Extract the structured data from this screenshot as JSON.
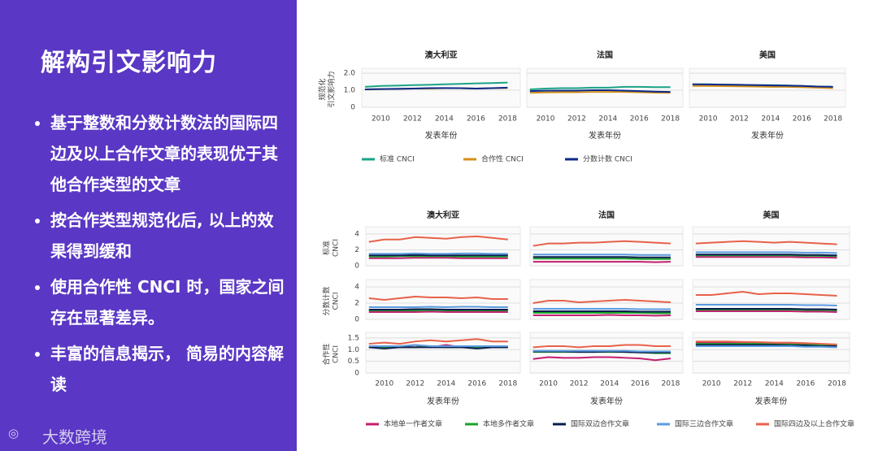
{
  "slide": {
    "title": "解构引文影响力",
    "bullets": [
      "基于整数和分数计数法的国际四边及以上合作文章的表现优于其他合作类型的文章",
      "按合作类型规范化后, 以上的效果得到缓和",
      "使用合作性 CNCI 时，国家之间存在显著差异。",
      "丰富的信息揭示， 简易的内容解读"
    ],
    "logo": "大数跨境"
  },
  "chart_data": [
    {
      "type": "line",
      "ylabel": [
        "规范化",
        "引文影响力"
      ],
      "xlabel": "发表年份",
      "x": [
        2009,
        2010,
        2011,
        2012,
        2013,
        2014,
        2015,
        2016,
        2017,
        2018
      ],
      "xlim": [
        2008.8,
        2018.8
      ],
      "xticks": [
        2010,
        2012,
        2014,
        2016,
        2018
      ],
      "ylim": [
        0,
        2.1
      ],
      "yticks": [
        0,
        {
          "value": 1,
          "label": "1.0"
        },
        {
          "value": 2,
          "label": "2.0"
        }
      ],
      "grid": true,
      "series": [
        {
          "name": "标准 CNCI",
          "color": "#1aa386"
        },
        {
          "name": "合作性 CNCI",
          "color": "#d4901a"
        },
        {
          "name": "分数计数 CNCI",
          "color": "#0d2a8a"
        }
      ],
      "panels": [
        {
          "title": "澳大利亚",
          "series": [
            [
              1.2,
              1.25,
              1.27,
              1.3,
              1.32,
              1.35,
              1.37,
              1.4,
              1.42,
              1.45
            ],
            [
              1.05,
              1.07,
              1.08,
              1.1,
              1.1,
              1.12,
              1.12,
              1.1,
              1.12,
              1.13
            ],
            [
              1.05,
              1.07,
              1.08,
              1.1,
              1.12,
              1.13,
              1.12,
              1.1,
              1.12,
              1.15
            ]
          ]
        },
        {
          "title": "法国",
          "series": [
            [
              1.05,
              1.1,
              1.12,
              1.12,
              1.15,
              1.15,
              1.2,
              1.2,
              1.18,
              1.18
            ],
            [
              0.85,
              0.87,
              0.88,
              0.88,
              0.9,
              0.9,
              0.9,
              0.88,
              0.86,
              0.85
            ],
            [
              0.95,
              0.97,
              0.98,
              0.98,
              1.0,
              1.0,
              0.98,
              0.95,
              0.92,
              0.9
            ]
          ]
        },
        {
          "title": "美国",
          "series": [
            [
              1.35,
              1.35,
              1.33,
              1.32,
              1.3,
              1.3,
              1.28,
              1.25,
              1.22,
              1.2
            ],
            [
              1.25,
              1.25,
              1.24,
              1.23,
              1.22,
              1.2,
              1.2,
              1.18,
              1.15,
              1.12
            ],
            [
              1.35,
              1.34,
              1.33,
              1.32,
              1.3,
              1.28,
              1.27,
              1.25,
              1.22,
              1.2
            ]
          ]
        }
      ]
    },
    {
      "type": "line",
      "xlabel": "发表年份",
      "x": [
        2009,
        2010,
        2011,
        2012,
        2013,
        2014,
        2015,
        2016,
        2017,
        2018
      ],
      "xlim": [
        2008.8,
        2018.8
      ],
      "xticks": [
        2010,
        2012,
        2014,
        2016,
        2018
      ],
      "grid": true,
      "rows": [
        {
          "label": [
            "标准",
            "CNCI"
          ],
          "ylim": [
            0,
            4.5
          ],
          "yticks": [
            0,
            2,
            4
          ]
        },
        {
          "label": [
            "分数计数",
            "CNCI"
          ],
          "ylim": [
            0,
            4.5
          ],
          "yticks": [
            0,
            2,
            4
          ]
        },
        {
          "label": [
            "合作性",
            "CNCI"
          ],
          "ylim": [
            0,
            1.6
          ],
          "yticks": [
            0,
            0.5,
            {
              "value": 1,
              "label": "1.0"
            },
            1.5
          ]
        }
      ],
      "series": [
        {
          "name": "本地单一作者文章",
          "color": "#c21e6f"
        },
        {
          "name": "本地多作者文章",
          "color": "#1ba32a"
        },
        {
          "name": "国际双边合作文章",
          "color": "#0b1d4f"
        },
        {
          "name": "国际三边合作文章",
          "color": "#5b9be0"
        },
        {
          "name": "国际四边及以上合作文章",
          "color": "#e8614a"
        }
      ],
      "panels": [
        {
          "title": "澳大利亚",
          "rows": [
            [
              [
                0.95,
                0.95,
                0.95,
                1.0,
                1.0,
                1.0,
                0.95,
                0.95,
                0.95,
                0.95
              ],
              [
                1.15,
                1.15,
                1.2,
                1.2,
                1.2,
                1.2,
                1.15,
                1.15,
                1.15,
                1.15
              ],
              [
                1.3,
                1.3,
                1.3,
                1.35,
                1.3,
                1.3,
                1.3,
                1.3,
                1.3,
                1.3
              ],
              [
                1.5,
                1.5,
                1.5,
                1.55,
                1.5,
                1.5,
                1.55,
                1.55,
                1.5,
                1.5
              ],
              [
                3.0,
                3.3,
                3.3,
                3.6,
                3.5,
                3.4,
                3.6,
                3.7,
                3.5,
                3.3
              ]
            ],
            [
              [
                0.9,
                0.9,
                0.9,
                0.9,
                0.95,
                0.9,
                0.9,
                0.9,
                0.9,
                0.9
              ],
              [
                1.1,
                1.1,
                1.1,
                1.1,
                1.15,
                1.1,
                1.1,
                1.1,
                1.1,
                1.1
              ],
              [
                1.2,
                1.2,
                1.2,
                1.25,
                1.25,
                1.2,
                1.2,
                1.2,
                1.2,
                1.2
              ],
              [
                1.5,
                1.5,
                1.5,
                1.5,
                1.55,
                1.5,
                1.55,
                1.55,
                1.5,
                1.5
              ],
              [
                2.6,
                2.4,
                2.6,
                2.8,
                2.7,
                2.7,
                2.6,
                2.7,
                2.5,
                2.5
              ]
            ],
            [
              [
                1.1,
                1.1,
                1.1,
                1.2,
                1.1,
                1.2,
                1.1,
                1.1,
                1.1,
                1.1
              ],
              [
                1.1,
                1.1,
                1.1,
                1.1,
                1.15,
                1.1,
                1.1,
                1.1,
                1.1,
                1.1
              ],
              [
                1.1,
                1.05,
                1.1,
                1.1,
                1.1,
                1.1,
                1.1,
                1.05,
                1.1,
                1.1
              ],
              [
                1.15,
                1.15,
                1.15,
                1.2,
                1.15,
                1.15,
                1.15,
                1.15,
                1.15,
                1.15
              ],
              [
                1.25,
                1.3,
                1.25,
                1.35,
                1.4,
                1.35,
                1.4,
                1.45,
                1.35,
                1.35
              ]
            ]
          ]
        },
        {
          "title": "法国",
          "rows": [
            [
              [
                0.5,
                0.5,
                0.5,
                0.5,
                0.5,
                0.5,
                0.5,
                0.5,
                0.45,
                0.5
              ],
              [
                0.9,
                0.9,
                0.9,
                0.9,
                0.9,
                0.9,
                0.9,
                0.85,
                0.85,
                0.85
              ],
              [
                1.1,
                1.1,
                1.1,
                1.1,
                1.1,
                1.1,
                1.1,
                1.05,
                1.05,
                1.05
              ],
              [
                1.4,
                1.4,
                1.4,
                1.4,
                1.4,
                1.4,
                1.4,
                1.35,
                1.35,
                1.35
              ],
              [
                2.5,
                2.8,
                2.8,
                2.9,
                2.9,
                3.0,
                3.1,
                3.0,
                2.9,
                2.8
              ]
            ],
            [
              [
                0.5,
                0.5,
                0.5,
                0.5,
                0.5,
                0.55,
                0.5,
                0.5,
                0.45,
                0.5
              ],
              [
                0.8,
                0.8,
                0.8,
                0.8,
                0.8,
                0.8,
                0.8,
                0.8,
                0.75,
                0.75
              ],
              [
                1.0,
                1.0,
                1.0,
                1.0,
                1.0,
                1.0,
                1.0,
                0.95,
                0.95,
                0.95
              ],
              [
                1.3,
                1.3,
                1.3,
                1.3,
                1.3,
                1.3,
                1.3,
                1.25,
                1.25,
                1.25
              ],
              [
                2.0,
                2.3,
                2.3,
                2.1,
                2.2,
                2.3,
                2.4,
                2.3,
                2.2,
                2.1
              ]
            ],
            [
              [
                0.6,
                0.68,
                0.65,
                0.65,
                0.68,
                0.68,
                0.65,
                0.62,
                0.55,
                0.62
              ],
              [
                0.9,
                0.9,
                0.9,
                0.9,
                0.9,
                0.9,
                0.9,
                0.88,
                0.85,
                0.85
              ],
              [
                0.92,
                0.92,
                0.92,
                0.9,
                0.9,
                0.92,
                0.9,
                0.88,
                0.88,
                0.88
              ],
              [
                0.95,
                0.95,
                0.95,
                0.95,
                0.95,
                0.95,
                0.95,
                0.92,
                0.92,
                0.92
              ],
              [
                1.1,
                1.15,
                1.15,
                1.1,
                1.15,
                1.15,
                1.2,
                1.2,
                1.15,
                1.15
              ]
            ]
          ]
        },
        {
          "title": "美国",
          "rows": [
            [
              [
                1.1,
                1.1,
                1.1,
                1.1,
                1.1,
                1.1,
                1.1,
                1.05,
                1.05,
                1.0
              ],
              [
                1.3,
                1.3,
                1.3,
                1.3,
                1.3,
                1.3,
                1.3,
                1.25,
                1.25,
                1.2
              ],
              [
                1.4,
                1.4,
                1.4,
                1.4,
                1.4,
                1.4,
                1.4,
                1.35,
                1.35,
                1.3
              ],
              [
                1.7,
                1.7,
                1.7,
                1.7,
                1.7,
                1.7,
                1.7,
                1.65,
                1.65,
                1.6
              ],
              [
                2.8,
                2.9,
                3.0,
                3.1,
                3.0,
                2.9,
                3.0,
                2.9,
                2.8,
                2.7
              ]
            ],
            [
              [
                1.0,
                1.0,
                1.0,
                1.0,
                1.0,
                1.0,
                1.0,
                0.95,
                0.95,
                0.9
              ],
              [
                1.2,
                1.2,
                1.2,
                1.2,
                1.2,
                1.2,
                1.2,
                1.15,
                1.15,
                1.1
              ],
              [
                1.3,
                1.3,
                1.3,
                1.3,
                1.3,
                1.3,
                1.3,
                1.25,
                1.25,
                1.2
              ],
              [
                1.8,
                1.8,
                1.8,
                1.8,
                1.8,
                1.8,
                1.8,
                1.75,
                1.75,
                1.7
              ],
              [
                3.0,
                3.0,
                3.2,
                3.4,
                3.1,
                3.2,
                3.2,
                3.1,
                3.0,
                2.9
              ]
            ],
            [
              [
                1.3,
                1.3,
                1.3,
                1.3,
                1.28,
                1.28,
                1.25,
                1.25,
                1.22,
                1.2
              ],
              [
                1.25,
                1.25,
                1.25,
                1.25,
                1.25,
                1.22,
                1.22,
                1.2,
                1.2,
                1.18
              ],
              [
                1.2,
                1.2,
                1.2,
                1.2,
                1.2,
                1.2,
                1.18,
                1.18,
                1.15,
                1.15
              ],
              [
                1.15,
                1.15,
                1.15,
                1.15,
                1.15,
                1.15,
                1.15,
                1.12,
                1.12,
                1.1
              ],
              [
                1.35,
                1.35,
                1.35,
                1.33,
                1.32,
                1.3,
                1.3,
                1.28,
                1.25,
                1.22
              ]
            ]
          ]
        }
      ]
    }
  ]
}
